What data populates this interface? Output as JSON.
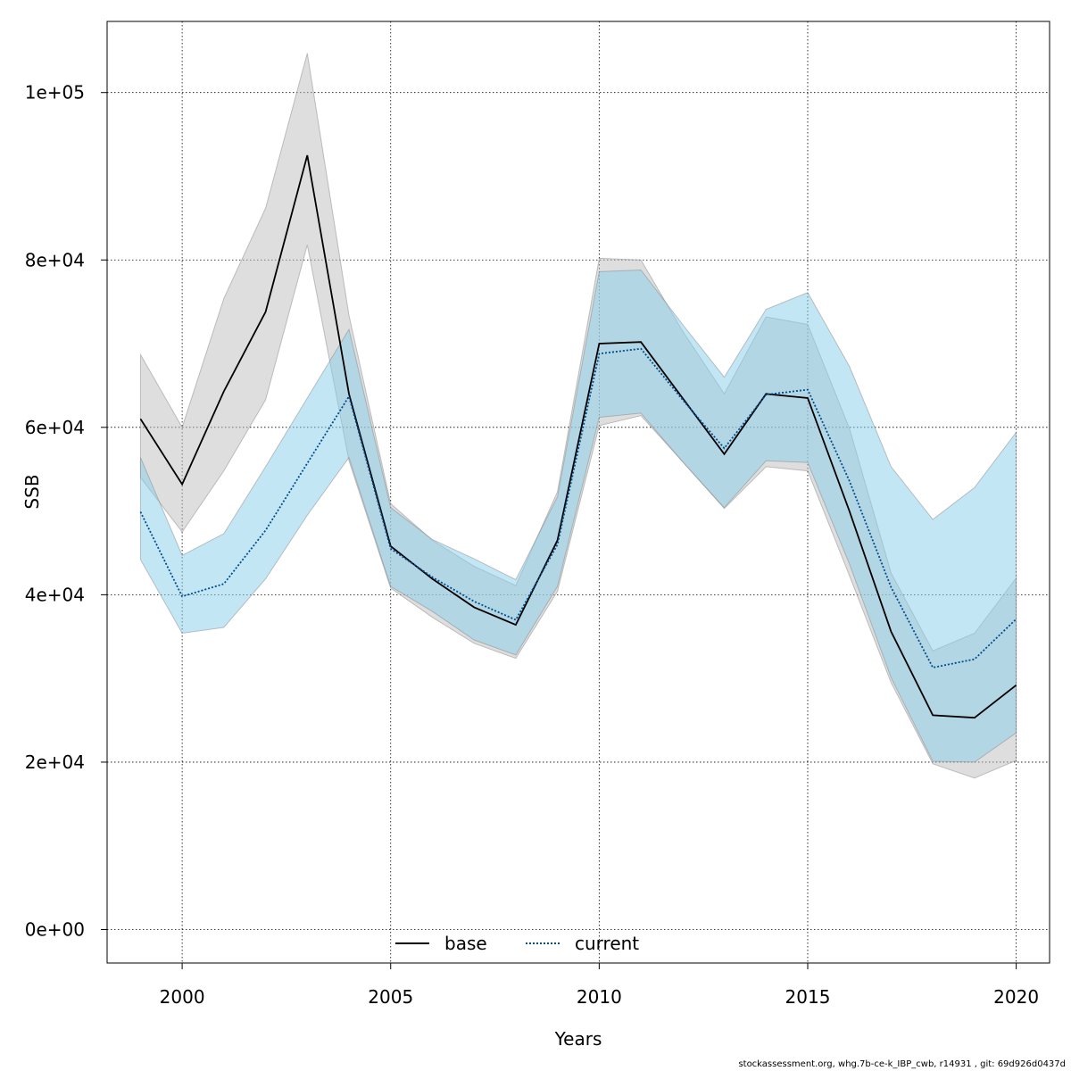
{
  "chart_data": {
    "type": "line",
    "title": "",
    "xlabel": "Years",
    "ylabel": "SSB",
    "xlim": [
      1998.2,
      2020.8
    ],
    "ylim": [
      -4000,
      108500
    ],
    "xticks": [
      2000,
      2005,
      2010,
      2015,
      2020
    ],
    "xtick_labels": [
      "2000",
      "2005",
      "2010",
      "2015",
      "2020"
    ],
    "yticks": [
      0,
      20000,
      40000,
      60000,
      80000,
      100000
    ],
    "ytick_labels": [
      "0e+00",
      "2e+04",
      "4e+04",
      "6e+04",
      "8e+04",
      "1e+05"
    ],
    "grid": true,
    "legend_position": "bottom-center",
    "x": [
      1999,
      2000,
      2001,
      2002,
      2003,
      2004,
      2005,
      2006,
      2007,
      2008,
      2009,
      2010,
      2011,
      2012,
      2013,
      2014,
      2015,
      2016,
      2017,
      2018,
      2019,
      2020
    ],
    "series": [
      {
        "name": "base",
        "line_style": "solid",
        "line_color": "#000000",
        "band_color": "#bebebe",
        "values": [
          61000,
          53200,
          64300,
          73800,
          92500,
          64000,
          45800,
          41900,
          38500,
          36400,
          46500,
          70000,
          70200,
          63500,
          56800,
          64000,
          63500,
          50000,
          35600,
          25600,
          25300,
          29200
        ],
        "lower": [
          54000,
          47500,
          54800,
          63300,
          81800,
          56000,
          40800,
          37300,
          34200,
          32400,
          40400,
          60200,
          61400,
          55900,
          50300,
          55300,
          54800,
          42300,
          29500,
          19800,
          18100,
          20200
        ],
        "upper": [
          68700,
          60000,
          75400,
          86200,
          104700,
          73400,
          50900,
          46500,
          43400,
          41100,
          52300,
          80200,
          80000,
          71500,
          64000,
          73200,
          72300,
          59900,
          42600,
          33300,
          35400,
          42000
        ]
      },
      {
        "name": "current",
        "line_style": "dotted",
        "line_color": "#004c8c",
        "band_color": "#87ceeb",
        "values": [
          49900,
          39800,
          41300,
          47700,
          55700,
          63700,
          45500,
          42100,
          39200,
          37000,
          46000,
          68800,
          69400,
          63300,
          57500,
          63900,
          64500,
          53600,
          40900,
          31300,
          32300,
          37100
        ],
        "lower": [
          44200,
          35400,
          36100,
          41900,
          49500,
          56400,
          41000,
          38000,
          34600,
          32800,
          41000,
          61200,
          61700,
          55900,
          50400,
          56000,
          55800,
          43700,
          30100,
          20100,
          20000,
          23500
        ],
        "upper": [
          56400,
          44700,
          47300,
          55300,
          63500,
          71700,
          50400,
          46600,
          44300,
          41800,
          51700,
          78600,
          78800,
          72300,
          66000,
          74100,
          76100,
          67300,
          55300,
          49000,
          52800,
          59400
        ]
      }
    ]
  },
  "footer_text": "stockassessment.org, whg.7b-ce-k_IBP_cwb, r14931 , git: 69d926d0437d"
}
